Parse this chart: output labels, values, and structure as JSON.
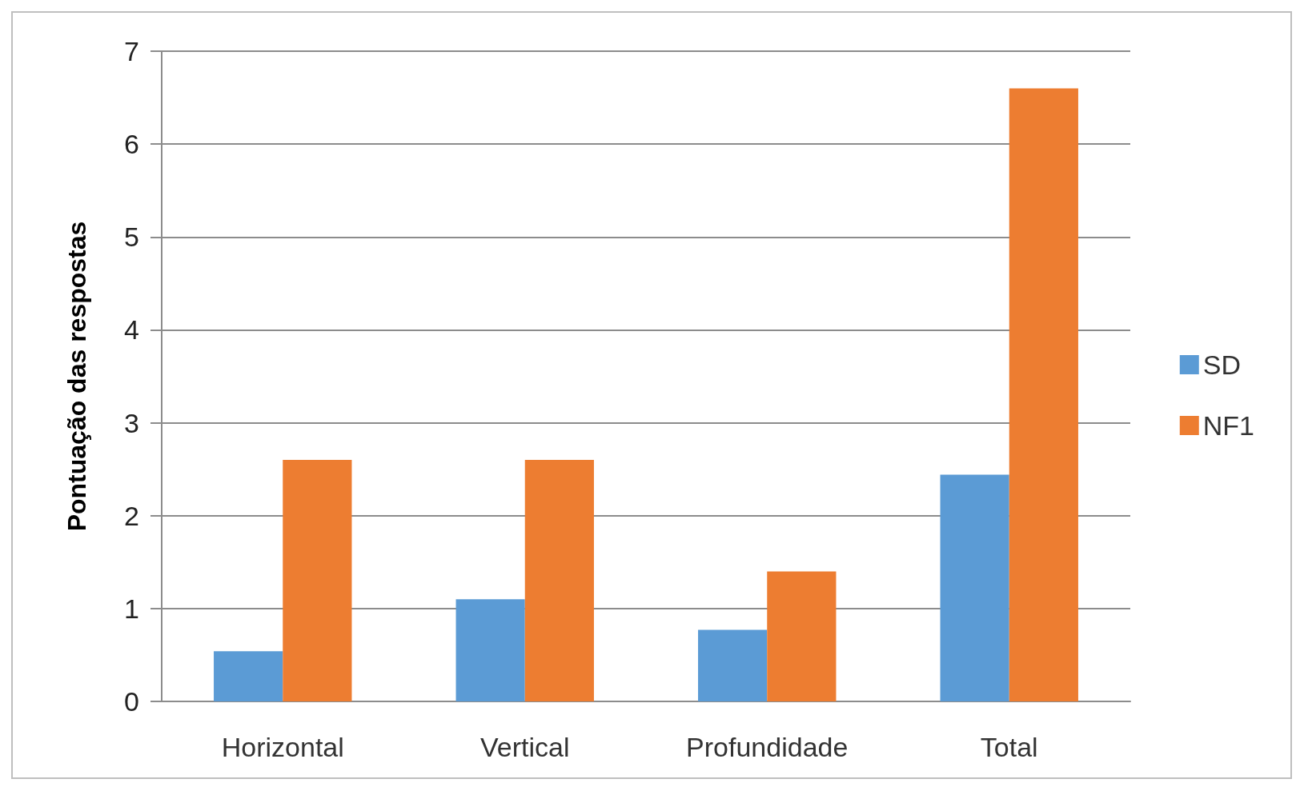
{
  "chart_data": {
    "type": "bar",
    "ylabel": "Pontuação das respostas",
    "categories": [
      "Horizontal",
      "Vertical",
      "Profundidade",
      "Total"
    ],
    "series": [
      {
        "name": "SD",
        "color": "#5b9bd5",
        "values": [
          0.54,
          1.1,
          0.77,
          2.44
        ]
      },
      {
        "name": "NF1",
        "color": "#ed7d31",
        "values": [
          2.6,
          2.6,
          1.4,
          6.6
        ]
      }
    ],
    "ylim": [
      0,
      7
    ],
    "yticks": [
      0,
      1,
      2,
      3,
      4,
      5,
      6,
      7
    ],
    "grid": "y",
    "legend": "right"
  }
}
